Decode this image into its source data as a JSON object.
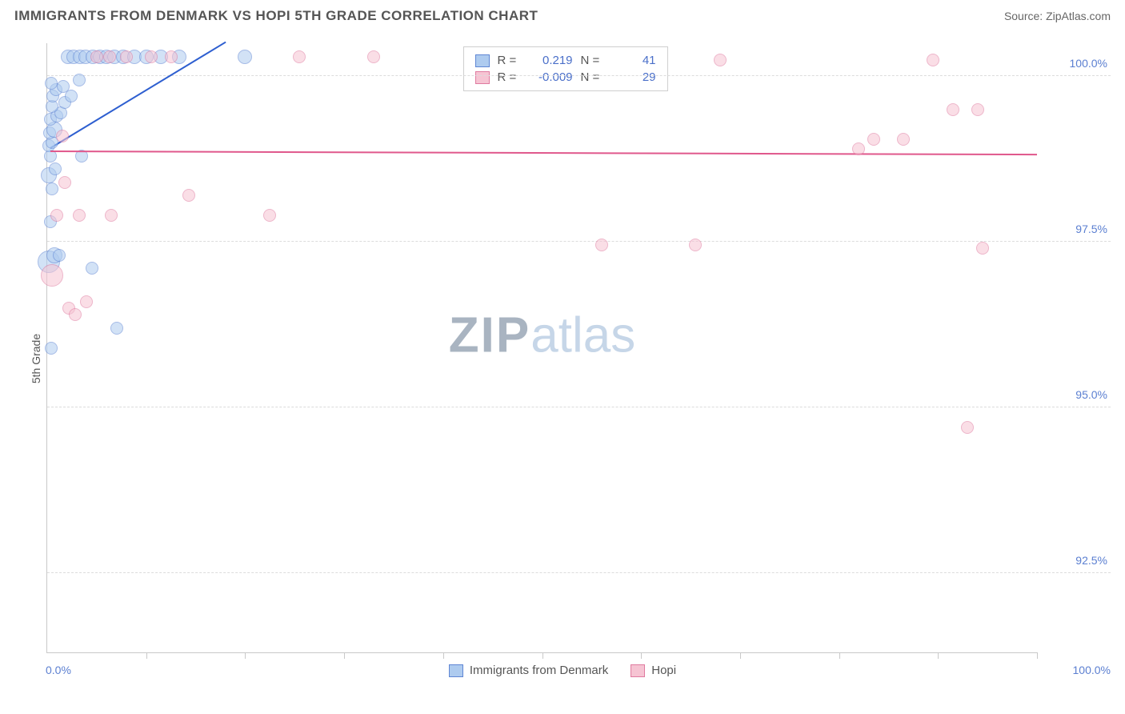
{
  "title": "IMMIGRANTS FROM DENMARK VS HOPI 5TH GRADE CORRELATION CHART",
  "source": "Source: ZipAtlas.com",
  "chart": {
    "type": "scatter",
    "y_axis_label": "5th Grade",
    "xlim": [
      0,
      100
    ],
    "ylim": [
      91.3,
      100.5
    ],
    "yticks": [
      {
        "v": 100.0,
        "label": "100.0%"
      },
      {
        "v": 97.5,
        "label": "97.5%"
      },
      {
        "v": 95.0,
        "label": "95.0%"
      },
      {
        "v": 92.5,
        "label": "92.5%"
      }
    ],
    "xtick_positions": [
      10,
      20,
      30,
      40,
      50,
      60,
      70,
      80,
      90,
      100
    ],
    "x_left_label": "0.0%",
    "x_right_label": "100.0%",
    "grid_color": "#dcdcdc",
    "axis_color": "#c9c9c9",
    "tick_label_color": "#5b7fd1",
    "series": [
      {
        "name": "Immigrants from Denmark",
        "fill": "#aecbef",
        "stroke": "#5f86d4",
        "fill_opacity": 0.55,
        "line_color": "#2e5fd0",
        "r": 0.219,
        "n": 41,
        "trend": {
          "x1": 0.3,
          "y1": 98.9,
          "x2": 18.0,
          "y2": 100.5
        },
        "points": [
          {
            "x": 0.4,
            "y": 95.9,
            "r": 8
          },
          {
            "x": 0.2,
            "y": 97.2,
            "r": 14
          },
          {
            "x": 0.7,
            "y": 97.3,
            "r": 10
          },
          {
            "x": 1.2,
            "y": 97.3,
            "r": 8
          },
          {
            "x": 0.3,
            "y": 97.8,
            "r": 8
          },
          {
            "x": 0.5,
            "y": 98.3,
            "r": 8
          },
          {
            "x": 0.2,
            "y": 98.5,
            "r": 10
          },
          {
            "x": 0.8,
            "y": 98.6,
            "r": 8
          },
          {
            "x": 0.3,
            "y": 98.8,
            "r": 8
          },
          {
            "x": 3.5,
            "y": 98.8,
            "r": 8
          },
          {
            "x": 0.2,
            "y": 98.95,
            "r": 8
          },
          {
            "x": 0.5,
            "y": 99.0,
            "r": 8
          },
          {
            "x": 0.25,
            "y": 99.15,
            "r": 8
          },
          {
            "x": 0.7,
            "y": 99.2,
            "r": 10
          },
          {
            "x": 0.3,
            "y": 99.35,
            "r": 8
          },
          {
            "x": 1.0,
            "y": 99.4,
            "r": 8
          },
          {
            "x": 1.4,
            "y": 99.45,
            "r": 8
          },
          {
            "x": 0.5,
            "y": 99.55,
            "r": 8
          },
          {
            "x": 1.8,
            "y": 99.6,
            "r": 8
          },
          {
            "x": 0.6,
            "y": 99.7,
            "r": 8
          },
          {
            "x": 2.4,
            "y": 99.7,
            "r": 8
          },
          {
            "x": 0.9,
            "y": 99.8,
            "r": 8
          },
          {
            "x": 1.6,
            "y": 99.85,
            "r": 8
          },
          {
            "x": 0.4,
            "y": 99.9,
            "r": 8
          },
          {
            "x": 3.2,
            "y": 99.95,
            "r": 8
          },
          {
            "x": 2.1,
            "y": 100.3,
            "r": 9
          },
          {
            "x": 2.7,
            "y": 100.3,
            "r": 9
          },
          {
            "x": 3.3,
            "y": 100.3,
            "r": 9
          },
          {
            "x": 3.9,
            "y": 100.3,
            "r": 9
          },
          {
            "x": 4.6,
            "y": 100.3,
            "r": 9
          },
          {
            "x": 5.3,
            "y": 100.3,
            "r": 9
          },
          {
            "x": 6.0,
            "y": 100.3,
            "r": 9
          },
          {
            "x": 6.8,
            "y": 100.3,
            "r": 9
          },
          {
            "x": 7.7,
            "y": 100.3,
            "r": 9
          },
          {
            "x": 8.8,
            "y": 100.3,
            "r": 9
          },
          {
            "x": 10.0,
            "y": 100.3,
            "r": 9
          },
          {
            "x": 11.5,
            "y": 100.3,
            "r": 9
          },
          {
            "x": 13.3,
            "y": 100.3,
            "r": 9
          },
          {
            "x": 20.0,
            "y": 100.3,
            "r": 9
          },
          {
            "x": 7.0,
            "y": 96.2,
            "r": 8
          },
          {
            "x": 4.5,
            "y": 97.1,
            "r": 8
          }
        ]
      },
      {
        "name": "Hopi",
        "fill": "#f6c4d3",
        "stroke": "#e07ba0",
        "fill_opacity": 0.55,
        "line_color": "#e0588c",
        "r": -0.009,
        "n": 29,
        "trend": {
          "x1": 0.3,
          "y1": 98.85,
          "x2": 100.0,
          "y2": 98.8
        },
        "points": [
          {
            "x": 0.5,
            "y": 97.0,
            "r": 14
          },
          {
            "x": 2.2,
            "y": 96.5,
            "r": 8
          },
          {
            "x": 4.0,
            "y": 96.6,
            "r": 8
          },
          {
            "x": 1.0,
            "y": 97.9,
            "r": 8
          },
          {
            "x": 3.2,
            "y": 97.9,
            "r": 8
          },
          {
            "x": 6.5,
            "y": 97.9,
            "r": 8
          },
          {
            "x": 14.3,
            "y": 98.2,
            "r": 8
          },
          {
            "x": 22.5,
            "y": 97.9,
            "r": 8
          },
          {
            "x": 56.0,
            "y": 97.45,
            "r": 8
          },
          {
            "x": 65.5,
            "y": 97.45,
            "r": 8
          },
          {
            "x": 94.5,
            "y": 97.4,
            "r": 8
          },
          {
            "x": 93.0,
            "y": 94.7,
            "r": 8
          },
          {
            "x": 82.0,
            "y": 98.9,
            "r": 8
          },
          {
            "x": 83.5,
            "y": 99.05,
            "r": 8
          },
          {
            "x": 86.5,
            "y": 99.05,
            "r": 8
          },
          {
            "x": 91.5,
            "y": 99.5,
            "r": 8
          },
          {
            "x": 94.0,
            "y": 99.5,
            "r": 8
          },
          {
            "x": 68.0,
            "y": 100.25,
            "r": 8
          },
          {
            "x": 89.5,
            "y": 100.25,
            "r": 8
          },
          {
            "x": 33.0,
            "y": 100.3,
            "r": 8
          },
          {
            "x": 25.5,
            "y": 100.3,
            "r": 8
          },
          {
            "x": 5.0,
            "y": 100.3,
            "r": 8
          },
          {
            "x": 6.3,
            "y": 100.3,
            "r": 8
          },
          {
            "x": 8.0,
            "y": 100.3,
            "r": 8
          },
          {
            "x": 10.5,
            "y": 100.3,
            "r": 8
          },
          {
            "x": 12.5,
            "y": 100.3,
            "r": 8
          },
          {
            "x": 1.5,
            "y": 99.1,
            "r": 8
          },
          {
            "x": 2.8,
            "y": 96.4,
            "r": 8
          },
          {
            "x": 1.8,
            "y": 98.4,
            "r": 8
          }
        ]
      }
    ],
    "legend_top": {
      "r_label": "R =",
      "n_label": "N ="
    },
    "watermark": {
      "bold": "ZIP",
      "light": "atlas",
      "color_bold": "#a9b4c1",
      "color_light": "#c6d6e8"
    }
  }
}
